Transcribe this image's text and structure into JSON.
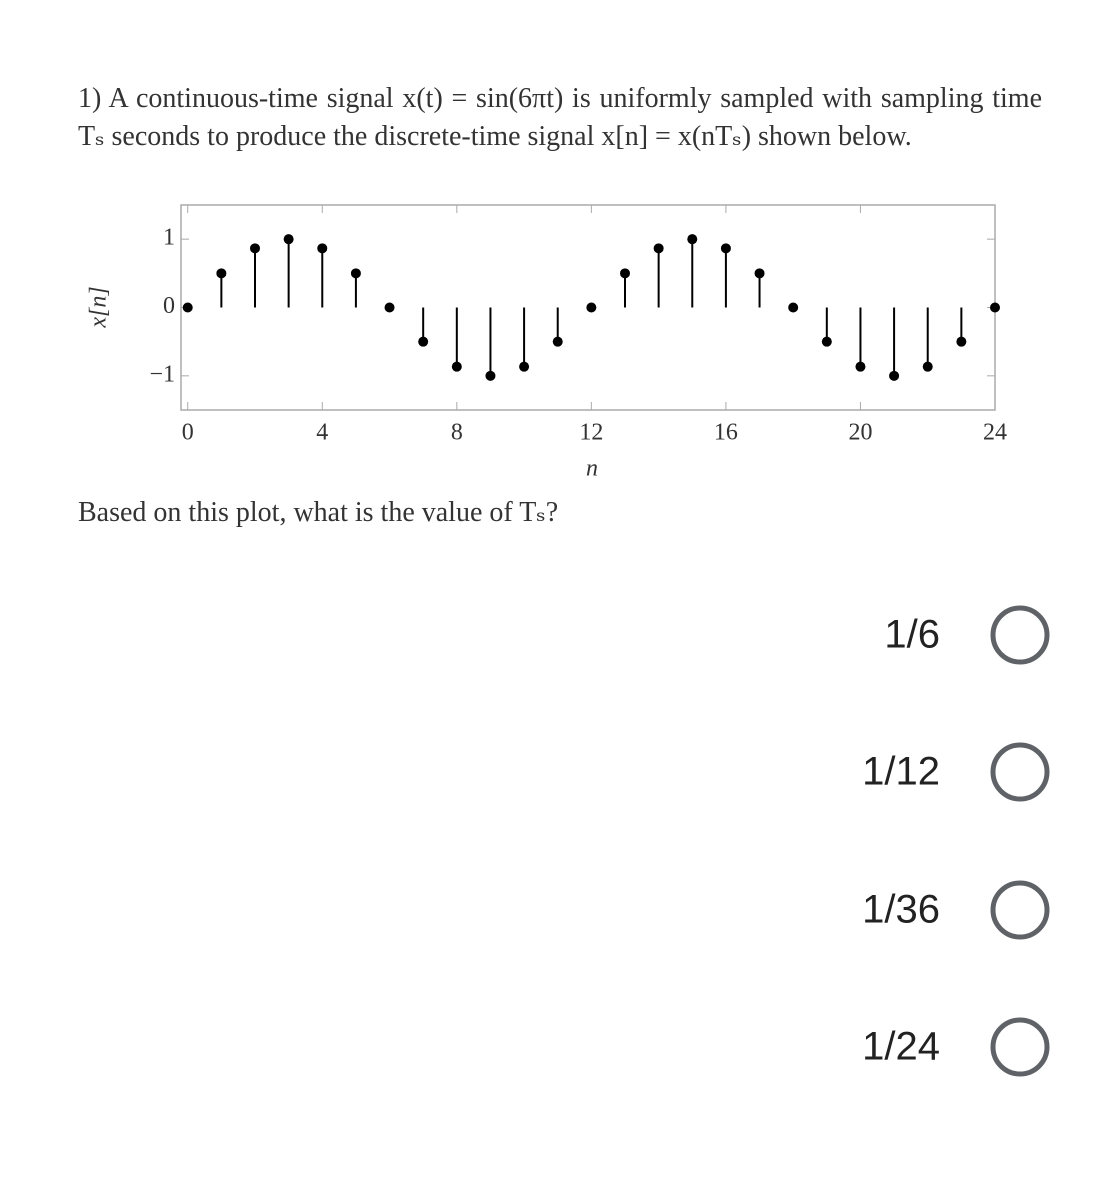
{
  "question": {
    "number": "1)",
    "text": "A continuous-time signal x(t) = sin(6πt) is uniformly sampled with sampling time Tₛ seconds to produce the discrete-time signal x[n] = x(nTₛ) shown below.",
    "prompt": "Based on this plot, what is the value of Tₛ?"
  },
  "chart_data": {
    "type": "stem",
    "xlabel": "n",
    "ylabel": "x[n]",
    "x": [
      0,
      1,
      2,
      3,
      4,
      5,
      6,
      7,
      8,
      9,
      10,
      11,
      12,
      13,
      14,
      15,
      16,
      17,
      18,
      19,
      20,
      21,
      22,
      23,
      24
    ],
    "values": [
      0,
      0.5,
      0.866,
      1,
      0.866,
      0.5,
      0,
      -0.5,
      -0.866,
      -1,
      -0.866,
      -0.5,
      0,
      0.5,
      0.866,
      1,
      0.866,
      0.5,
      0,
      -0.5,
      -0.866,
      -1,
      -0.866,
      -0.5,
      0
    ],
    "color": "#000000",
    "xlim": [
      -0.2,
      24
    ],
    "ylim": [
      -1.5,
      1.5
    ],
    "xticks": [
      0,
      4,
      8,
      12,
      16,
      20,
      24
    ],
    "yticks": [
      {
        "value": -1,
        "label": "−1"
      },
      0,
      1
    ]
  },
  "options": [
    "1/6",
    "1/12",
    "1/36",
    "1/24"
  ]
}
